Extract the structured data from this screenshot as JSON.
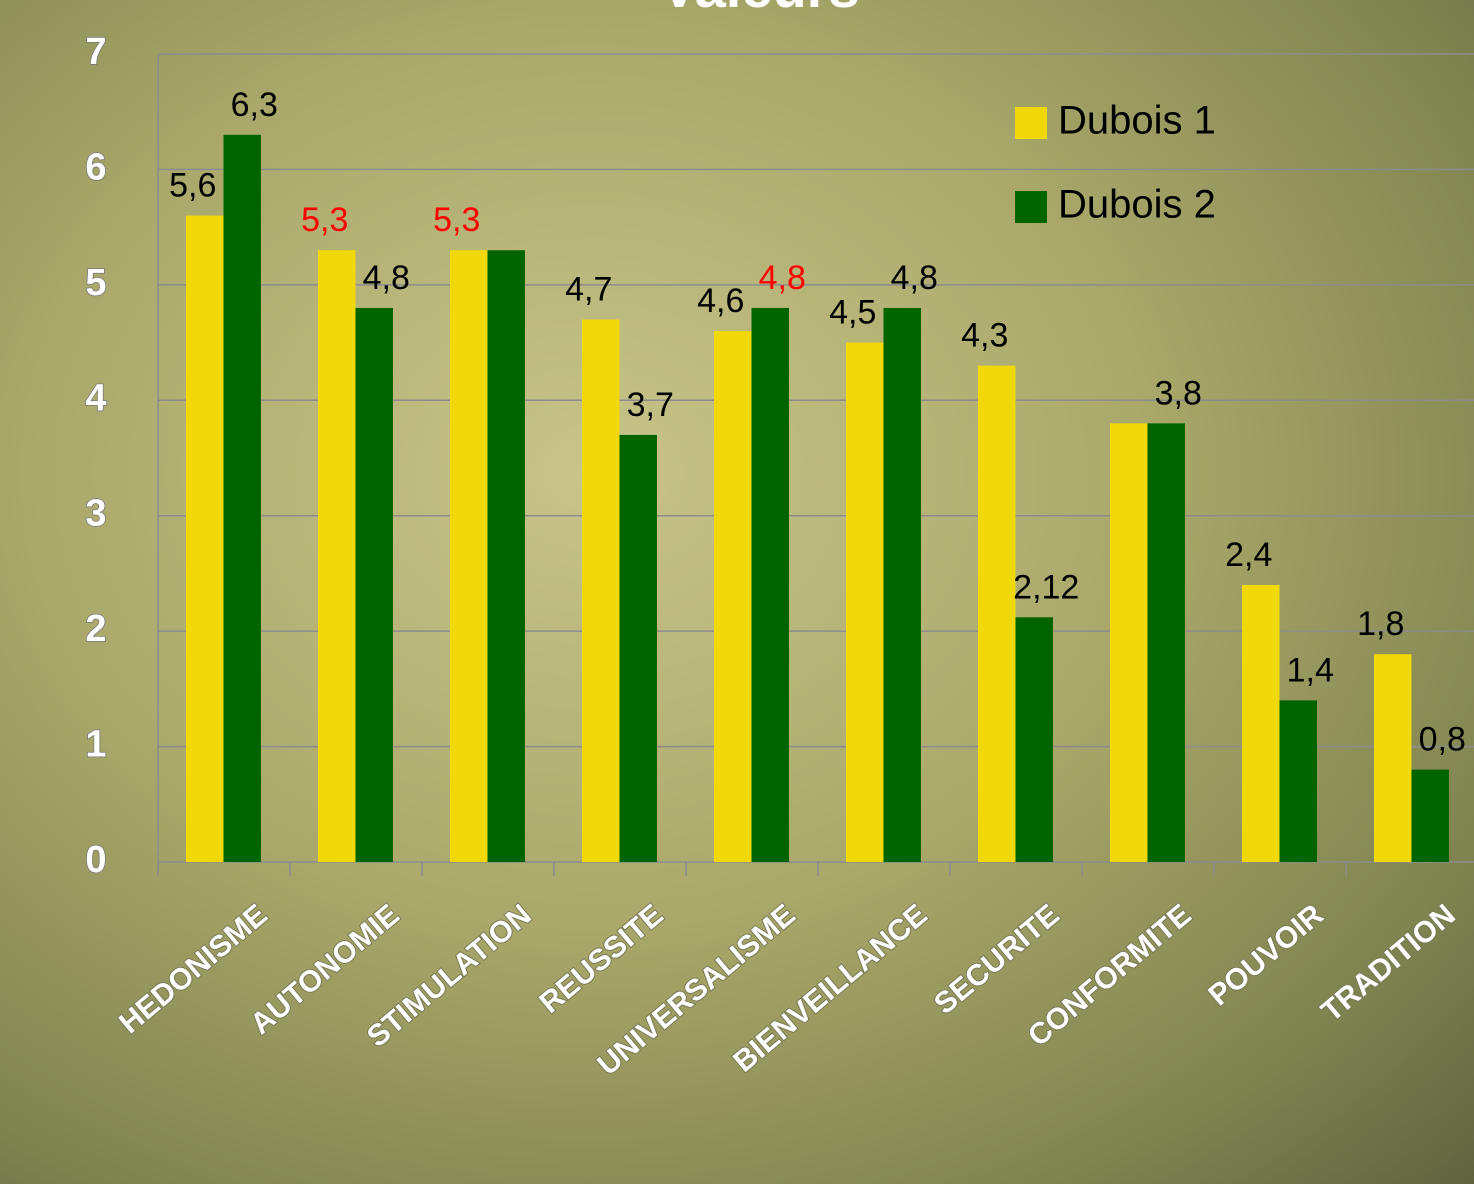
{
  "chart_data": {
    "type": "bar",
    "title": "Valeurs",
    "categories": [
      "HEDONISME",
      "AUTONOMIE",
      "STIMULATION",
      "REUSSITE",
      "UNIVERSALISME",
      "BIENVEILLANCE",
      "SECURITE",
      "CONFORMITE",
      "POUVOIR",
      "TRADITION"
    ],
    "series": [
      {
        "name": "Dubois 1",
        "color": "#f0d80a",
        "values": [
          5.6,
          5.3,
          5.3,
          4.7,
          4.6,
          4.5,
          4.3,
          3.8,
          2.4,
          1.8
        ],
        "value_labels": [
          "5,6",
          "5,3",
          "5,3",
          "4,7",
          "4,6",
          "4,5",
          "4,3",
          null,
          "2,4",
          "1,8"
        ],
        "value_label_colors": [
          "#000000",
          "#ff0000",
          "#ff0000",
          "#000000",
          "#000000",
          "#000000",
          "#000000",
          "#000000",
          "#000000",
          "#000000"
        ]
      },
      {
        "name": "Dubois 2",
        "color": "#006400",
        "values": [
          6.3,
          4.8,
          5.3,
          3.7,
          4.8,
          4.8,
          2.12,
          3.8,
          1.4,
          0.8
        ],
        "value_labels": [
          "6,3",
          "4,8",
          null,
          "3,7",
          "4,8",
          "4,8",
          "2,12",
          "3,8",
          "1,4",
          "0,8"
        ],
        "value_label_colors": [
          "#000000",
          "#000000",
          "#000000",
          "#000000",
          "#ff0000",
          "#000000",
          "#000000",
          "#000000",
          "#000000",
          "#000000"
        ]
      }
    ],
    "ylim": [
      0,
      7
    ],
    "yticks": [
      0,
      1,
      2,
      3,
      4,
      5,
      6,
      7
    ],
    "grid": true,
    "legend": "top-right"
  }
}
